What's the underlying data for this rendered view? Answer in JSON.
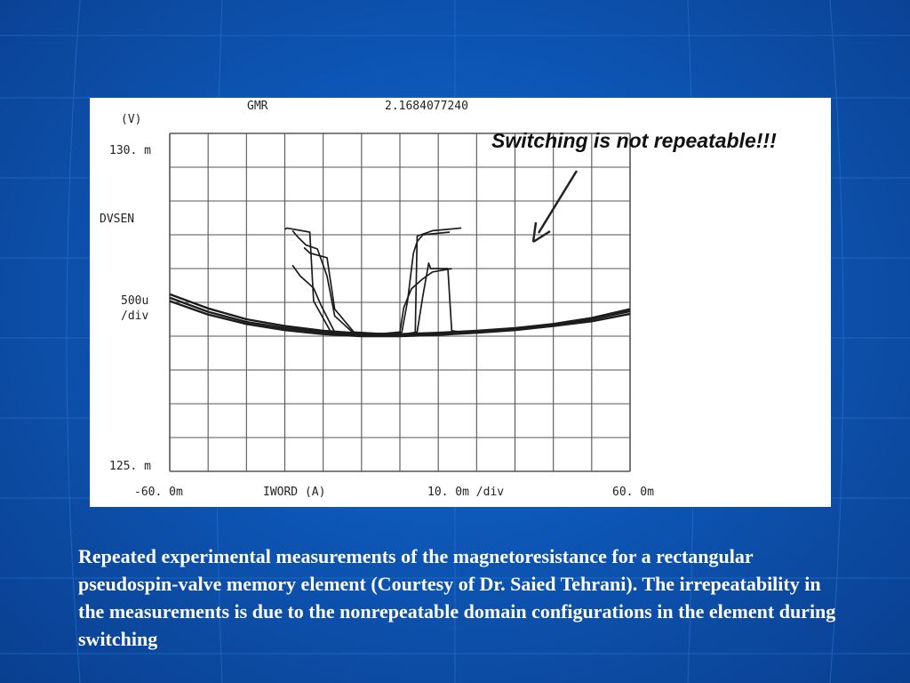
{
  "background": {
    "primary_color": "#0d56b5",
    "dark_color": "#0a3f8f"
  },
  "chart_data": {
    "type": "line",
    "header_label": "GMR",
    "header_value": "2.1684077240",
    "y_unit": "(V)",
    "y_top_label": "130. m",
    "y_bottom_label": "125. m",
    "y_name": "DVSEN",
    "y_scale_value": "500u",
    "y_scale_unit": "/div",
    "x_min_label": "-60. 0m",
    "x_max_label": "60. 0m",
    "x_name": "IWORD (A)",
    "x_scale": "10. 0m /div",
    "xlim": [
      -0.06,
      0.06
    ],
    "ylim": [
      0.125,
      0.13
    ],
    "grid": true,
    "annotation": "Switching is not repeatable!!!",
    "series": [
      {
        "x": [
          -0.06,
          -0.05,
          -0.04,
          -0.03,
          -0.02,
          -0.01,
          0,
          0.01,
          0.02,
          0.03,
          0.04,
          0.05,
          0.06
        ],
        "y": [
          0.12762,
          0.12741,
          0.12725,
          0.12715,
          0.12708,
          0.12704,
          0.12703,
          0.12705,
          0.12708,
          0.12712,
          0.12718,
          0.12727,
          0.1274
        ]
      },
      {
        "x": [
          -0.06,
          -0.05,
          -0.04,
          -0.03,
          -0.02,
          -0.01,
          0,
          0.01,
          0.02,
          0.03,
          0.04,
          0.05,
          0.06
        ],
        "y": [
          0.12757,
          0.12736,
          0.12721,
          0.12712,
          0.12706,
          0.12702,
          0.12702,
          0.12704,
          0.12707,
          0.12711,
          0.12717,
          0.12725,
          0.12737
        ]
      },
      {
        "x": [
          -0.06,
          -0.05,
          -0.04,
          -0.03,
          -0.02,
          -0.01,
          0,
          0.01,
          0.02,
          0.03,
          0.04,
          0.05,
          0.06
        ],
        "y": [
          0.12752,
          0.12732,
          0.12718,
          0.12709,
          0.12703,
          0.127,
          0.127,
          0.12702,
          0.12705,
          0.12709,
          0.12715,
          0.12722,
          0.12733
        ]
      },
      {
        "x": [
          -0.03,
          -0.0295,
          -0.0235,
          -0.0225,
          -0.018,
          -0.015,
          0.003,
          0.004,
          0.0045,
          0.0085,
          0.016
        ],
        "y": [
          0.12858,
          0.1286,
          0.12854,
          0.12752,
          0.12706,
          0.12702,
          0.12702,
          0.12706,
          0.12848,
          0.12856,
          0.1286
        ]
      },
      {
        "x": [
          -0.028,
          -0.0265,
          -0.0245,
          -0.0215,
          -0.019,
          -0.017,
          -0.012,
          -0.002,
          0.0005,
          0.002,
          0.0035,
          0.0045,
          0.006,
          0.013
        ],
        "y": [
          0.12856,
          0.12846,
          0.12835,
          0.12829,
          0.12789,
          0.1273,
          0.12704,
          0.12702,
          0.12706,
          0.12752,
          0.12822,
          0.1284,
          0.1285,
          0.12854
        ]
      },
      {
        "x": [
          -0.028,
          -0.026,
          -0.024,
          -0.0225,
          -0.0205,
          -0.017,
          -0.008,
          0.0,
          0.001,
          0.003,
          0.006,
          0.0085,
          0.0135
        ],
        "y": [
          0.12805,
          0.12789,
          0.12779,
          0.12771,
          0.12745,
          0.12706,
          0.12702,
          0.12706,
          0.12742,
          0.1277,
          0.12785,
          0.12795,
          0.128
        ]
      },
      {
        "x": [
          -0.025,
          -0.0235,
          -0.019,
          -0.017,
          -0.012,
          0.0,
          0.0045,
          0.006,
          0.0075,
          0.008,
          0.0125,
          0.0135,
          0.016,
          0.018
        ],
        "y": [
          0.12831,
          0.12823,
          0.12816,
          0.1274,
          0.12706,
          0.12702,
          0.12706,
          0.1276,
          0.12808,
          0.128,
          0.128,
          0.12708,
          0.12706,
          0.12706
        ]
      }
    ]
  },
  "caption": "Repeated experimental measurements of the magnetoresistance for a rectangular pseudospin-valve memory element (Courtesy of Dr. Saied Tehrani). The irrepeatability in the measurements is due to the nonrepeatable domain configurations in the element during switching"
}
